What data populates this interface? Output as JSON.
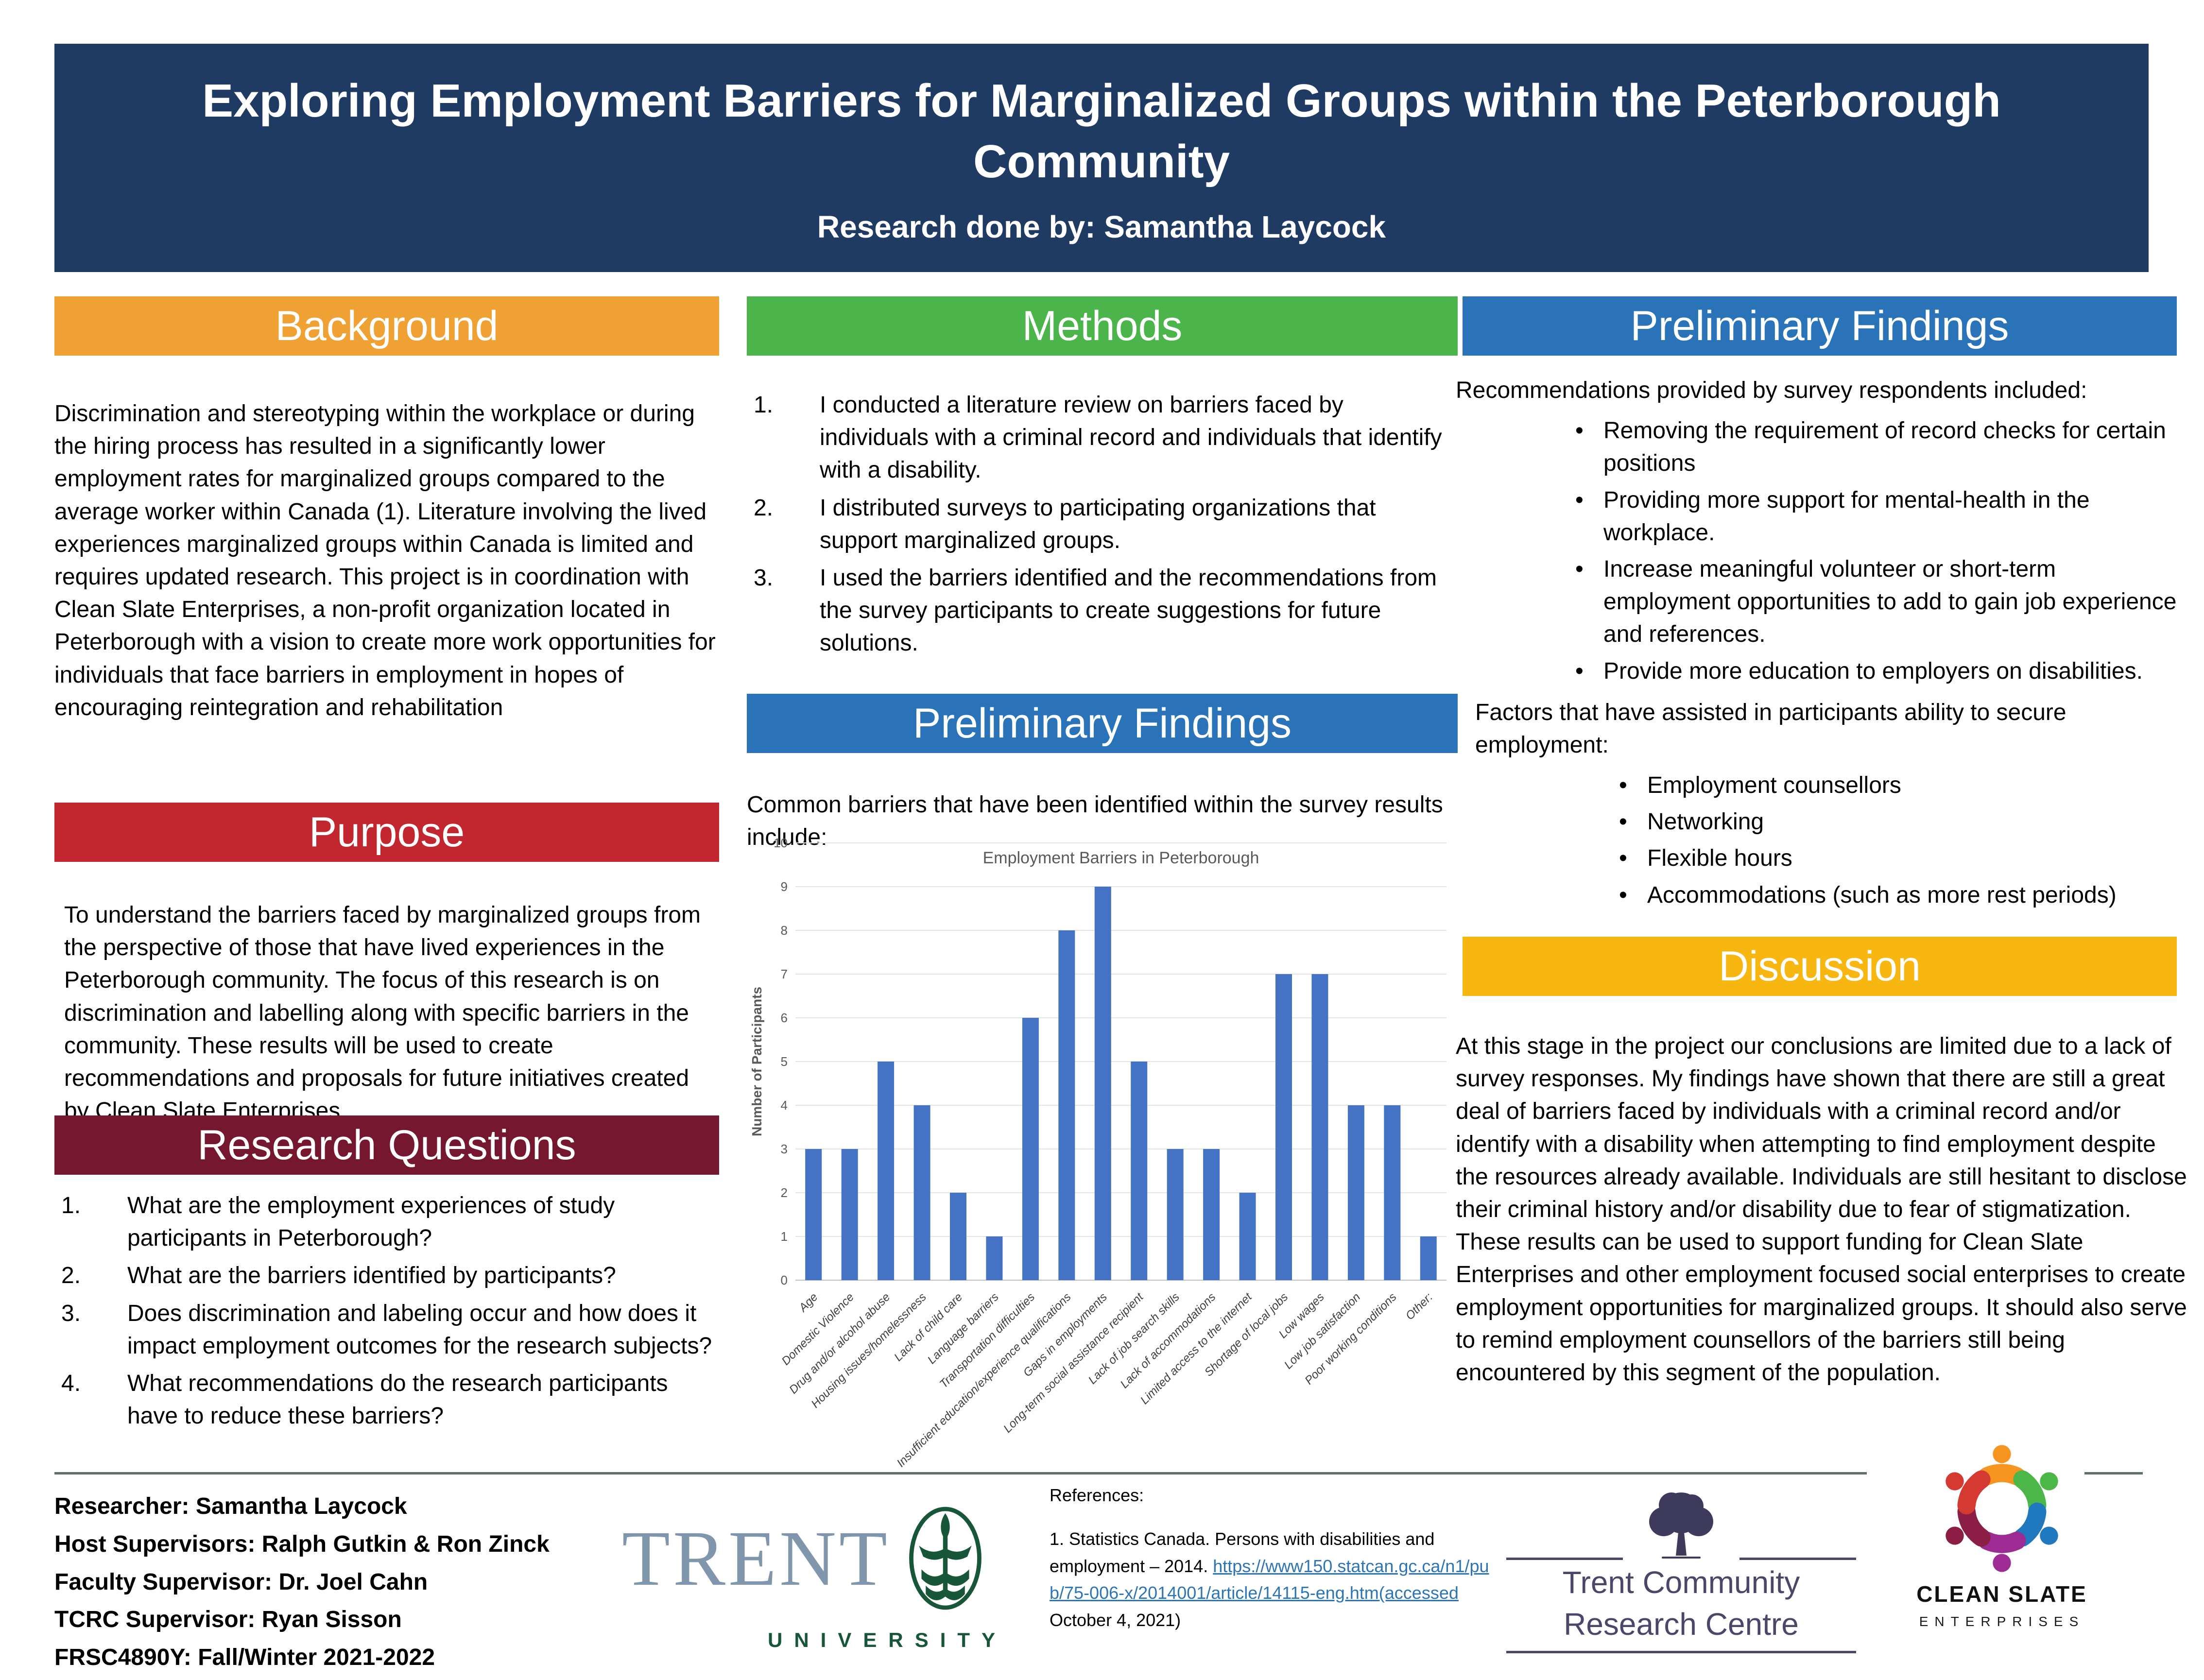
{
  "poster": {
    "title": "Exploring Employment Barriers for Marginalized Groups within the Peterborough Community",
    "subtitle": "Research done by: Samantha Laycock"
  },
  "sections": {
    "background": {
      "header": "Background",
      "body": "Discrimination and stereotyping within the workplace or during the hiring process has resulted in a significantly lower employment rates for marginalized groups compared to the average worker within Canada (1). Literature involving the lived experiences marginalized groups within Canada is limited and requires updated research. This project is in coordination with Clean Slate Enterprises, a non-profit organization located in Peterborough with a vision to create more work opportunities for individuals that face barriers in employment in hopes of encouraging reintegration and rehabilitation"
    },
    "purpose": {
      "header": "Purpose",
      "body": "To understand the barriers faced by marginalized groups from the perspective of those that have lived experiences in the Peterborough community. The focus of this research is on discrimination and labelling along with specific barriers in the community.  These results will be used to create recommendations and proposals for future initiatives created by Clean Slate Enterprises."
    },
    "research_questions": {
      "header": "Research Questions",
      "items": [
        "What are the employment experiences of study participants in Peterborough?",
        "What are the barriers identified by participants?",
        "Does discrimination and labeling occur and how does it impact employment outcomes for the research subjects?",
        "What recommendations do the research participants have to reduce these barriers?"
      ]
    },
    "methods": {
      "header": "Methods",
      "items": [
        "I conducted a literature review on barriers faced by individuals with a criminal record and individuals that identify with a disability.",
        "I distributed surveys to participating organizations that support marginalized groups.",
        "I used the barriers identified and the recommendations from the survey participants to create suggestions for future solutions."
      ]
    },
    "preliminary_findings_mid": {
      "header": "Preliminary Findings",
      "intro": "Common barriers that have been identified within the survey results include:"
    },
    "preliminary_findings_right": {
      "header": "Preliminary Findings",
      "intro": "Recommendations provided by survey respondents included:",
      "bullets": [
        "Removing the requirement of record checks for certain positions",
        "Providing more support for mental-health in the workplace.",
        "Increase meaningful volunteer or short-term employment opportunities to add to gain job experience and references.",
        "Provide more education to employers on disabilities."
      ],
      "factors_intro": "Factors that have assisted in participants ability to secure employment:",
      "factors": [
        "Employment counsellors",
        "Networking",
        "Flexible hours",
        "Accommodations (such as more rest periods)"
      ]
    },
    "discussion": {
      "header": "Discussion",
      "body": "At this stage in the project our conclusions are limited due to a lack of survey responses. My findings have shown that there are still a great deal of barriers faced by individuals with a criminal record and/or identify with a disability when attempting to find employment despite the resources already available. Individuals are still hesitant to disclose their criminal history and/or disability due to fear of stigmatization. These results can be used to support funding for Clean Slate Enterprises and other employment focused social enterprises to create employment opportunities for marginalized groups. It should also serve to remind employment counsellors of the barriers still being encountered by this segment of the population."
    }
  },
  "chart_data": {
    "type": "bar",
    "title": "Employment Barriers in Peterborough",
    "xlabel": "",
    "ylabel": "Number of Participants",
    "ylim": [
      0,
      10
    ],
    "grid": true,
    "legend_position": "none",
    "bar_color": "#4472C4",
    "categories": [
      "Age",
      "Domestic Violence",
      "Drug and/or alcohol abuse",
      "Housing issues/homelessness",
      "Lack of child care",
      "Language barriers",
      "Transportation difficulties",
      "Insufficient education/experience qualifications",
      "Gaps in employments",
      "Long-term social assistance recipient",
      "Lack of job search skills",
      "Lack of accommodations",
      "Limited access to the internet",
      "Shortage of local jobs",
      "Low wages",
      "Low job satisfaction",
      "Poor working conditions",
      "Other:"
    ],
    "values": [
      3,
      3,
      5,
      4,
      2,
      1,
      6,
      8,
      9,
      5,
      3,
      3,
      2,
      7,
      7,
      4,
      4,
      1
    ]
  },
  "footer": {
    "credits": [
      "Researcher: Samantha Laycock",
      "Host Supervisors: Ralph Gutkin & Ron Zinck",
      "Faculty Supervisor:  Dr. Joel Cahn",
      "TCRC Supervisor: Ryan Sisson",
      "FRSC4890Y: Fall/Winter 2021-2022"
    ],
    "references": {
      "label": "References:",
      "item": "1. Statistics Canada. Persons with disabilities and employment – 2014. ",
      "link": "https://www150.statcan.gc.ca/n1/pub/75-006-x/2014001/article/14115-eng.htm(accessed",
      "tail": " October 4, 2021)"
    },
    "logos": {
      "trent": {
        "wordmark": "TRENT",
        "sub": "UNIVERSITY"
      },
      "tcrc": {
        "line1": "Trent Community",
        "line2": "Research Centre"
      },
      "clean_slate": {
        "name": "CLEAN SLATE",
        "sub": "ENTERPRISES"
      }
    }
  },
  "colors": {
    "navy": "#1F3A63",
    "orange": "#F0A134",
    "red": "#C2272F",
    "maroon": "#74172F",
    "green": "#4BB54B",
    "blue": "#2B73B9",
    "gold": "#F8B611",
    "bar": "#4472C4",
    "link": "#2E75B6",
    "divider": "#5E6F6E"
  }
}
